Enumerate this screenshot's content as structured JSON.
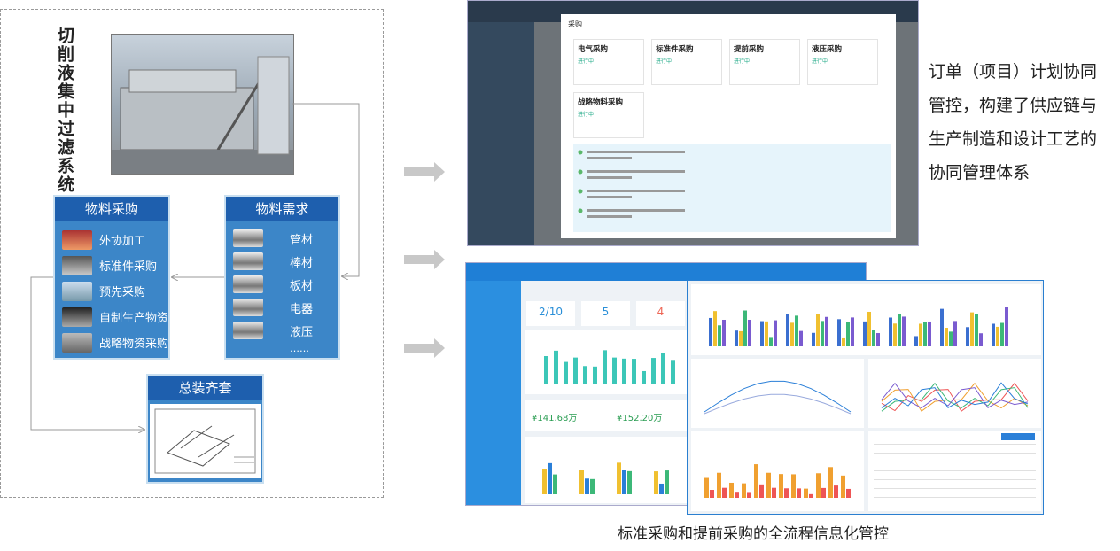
{
  "system_title": "切削液集中过滤系统",
  "procurement": {
    "title": "物料采购",
    "items": [
      "外协加工",
      "标准件采购",
      "预先采购",
      "自制生产物资",
      "战略物资采购"
    ]
  },
  "demand": {
    "title": "物料需求",
    "items": [
      "管材",
      "棒材",
      "板材",
      "电器",
      "液压",
      "……"
    ]
  },
  "assembly": {
    "title": "总装齐套"
  },
  "screenshot_top": {
    "modal_title": "采购",
    "cards": [
      {
        "title": "电气采购",
        "status": "进行中"
      },
      {
        "title": "标准件采购",
        "status": "进行中"
      },
      {
        "title": "提前采购",
        "status": "进行中"
      },
      {
        "title": "液压采购",
        "status": "进行中"
      },
      {
        "title": "战略物料采购",
        "status": "进行中"
      }
    ]
  },
  "screenshot_bottom": {
    "kpis": [
      "2/10",
      "5",
      "4"
    ],
    "amounts": [
      "¥141.68万",
      "¥152.20万"
    ]
  },
  "description": [
    "订单（项目）计划协同",
    "管控，构建了供应链与",
    "生产制造和设计工艺的",
    "协同管理体系"
  ],
  "caption": "标准采购和提前采购的全流程信息化管控"
}
